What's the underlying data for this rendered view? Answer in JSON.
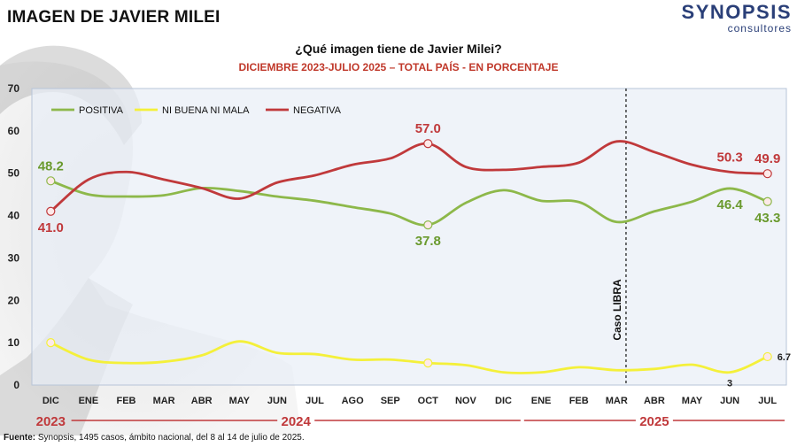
{
  "page": {
    "title": "IMAGEN DE JAVIER MILEI"
  },
  "logo": {
    "main": "SYNOPSIS",
    "sub": "consultores",
    "color": "#2a3f78"
  },
  "footer": {
    "label": "Fuente:",
    "text": " Synopsis, 1495 casos, ámbito nacional, del 8 al 14 de julio de 2025."
  },
  "chart_data": {
    "type": "line",
    "title": "¿Qué imagen tiene de Javier Milei?",
    "subtitle": "DICIEMBRE 2023-JULIO 2025 – TOTAL PAÍS - EN PORCENTAJE",
    "categories": [
      "DIC",
      "ENE",
      "FEB",
      "MAR",
      "ABR",
      "MAY",
      "JUN",
      "JUL",
      "AGO",
      "SEP",
      "OCT",
      "NOV",
      "DIC",
      "ENE",
      "FEB",
      "MAR",
      "ABR",
      "MAY",
      "JUN",
      "JUL"
    ],
    "years": [
      {
        "label": "2023",
        "from": 0,
        "to": 0
      },
      {
        "label": "2024",
        "from": 1,
        "to": 12
      },
      {
        "label": "2025",
        "from": 13,
        "to": 19
      }
    ],
    "ylim": [
      0,
      70
    ],
    "yticks": [
      0,
      10,
      20,
      30,
      40,
      50,
      60,
      70
    ],
    "legend_position": "top-left",
    "grid": false,
    "series": [
      {
        "name": "POSITIVA",
        "color": "#8db84a",
        "label_color": "#6a9a2e",
        "values": [
          48.2,
          45.0,
          44.5,
          44.8,
          46.5,
          45.8,
          44.5,
          43.5,
          42.0,
          40.5,
          37.8,
          43.0,
          46.0,
          43.5,
          43.2,
          38.5,
          41.0,
          43.3,
          46.4,
          43.3
        ],
        "labels": [
          {
            "index": 0,
            "text": "48.2",
            "pos": "above"
          },
          {
            "index": 10,
            "text": "37.8",
            "pos": "below"
          },
          {
            "index": 18,
            "text": "46.4",
            "pos": "below"
          },
          {
            "index": 19,
            "text": "43.3",
            "pos": "below"
          }
        ]
      },
      {
        "name": "NI BUENA NI MALA",
        "color": "#f4f03a",
        "label_color": "#222222",
        "values": [
          10.0,
          6.0,
          5.2,
          5.5,
          7.0,
          10.3,
          7.6,
          7.3,
          6.0,
          6.0,
          5.2,
          4.7,
          3.0,
          3.0,
          4.2,
          3.5,
          3.8,
          4.8,
          3.0,
          6.7
        ],
        "labels": [
          {
            "index": 18,
            "text": "3",
            "pos": "below"
          },
          {
            "index": 19,
            "text": "6.7",
            "pos": "right"
          }
        ]
      },
      {
        "name": "NEGATIVA",
        "color": "#c0393b",
        "label_color": "#c0393b",
        "values": [
          41.0,
          48.5,
          50.3,
          48.5,
          46.5,
          44.0,
          47.8,
          49.5,
          52.0,
          53.5,
          57.0,
          51.5,
          50.8,
          51.5,
          52.5,
          57.5,
          55.0,
          52.0,
          50.3,
          49.9
        ],
        "labels": [
          {
            "index": 0,
            "text": "41.0",
            "pos": "below"
          },
          {
            "index": 10,
            "text": "57.0",
            "pos": "above"
          },
          {
            "index": 18,
            "text": "50.3",
            "pos": "above"
          },
          {
            "index": 19,
            "text": "49.9",
            "pos": "above"
          }
        ]
      }
    ],
    "markers": [
      0,
      10,
      19
    ],
    "annotation": {
      "text": "Caso LIBRA",
      "x_index": 15
    },
    "plot_background": "#e8eef7"
  }
}
